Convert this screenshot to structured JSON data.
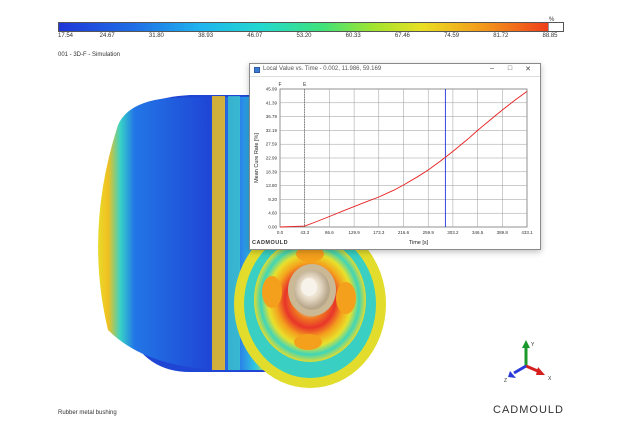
{
  "colorbar": {
    "unit": "%",
    "ticks": [
      "17.54",
      "24.67",
      "31.80",
      "38.93",
      "46.07",
      "53.20",
      "60.33",
      "67.46",
      "74.59",
      "81.72",
      "88.85"
    ]
  },
  "scene": {
    "label": "001 - 3D-F - Simulation"
  },
  "footer": {
    "label": "Rubber metal bushing"
  },
  "brand": {
    "name": "CADMOULD"
  },
  "triad": {
    "x": "X",
    "y": "Y",
    "z": "Z"
  },
  "window": {
    "title": "Local Value vs. Time - 0.002, 11.986, 59.169",
    "minimize_icon": "minimize-icon",
    "maximize_icon": "maximize-icon",
    "close_icon": "close-icon"
  },
  "chart_data": {
    "type": "line",
    "title": "",
    "xlabel": "Time [s]",
    "ylabel": "Mean Cure Rate [%]",
    "xlim": [
      0,
      433.1
    ],
    "ylim": [
      0,
      45.99
    ],
    "x_ticks": [
      "0.0",
      "43.3",
      "86.6",
      "129.9",
      "173.3",
      "216.6",
      "259.9",
      "303.2",
      "346.5",
      "389.8",
      "433.1"
    ],
    "y_ticks": [
      "0.00",
      "4.60",
      "9.20",
      "13.80",
      "18.39",
      "22.99",
      "27.59",
      "32.19",
      "36.79",
      "41.39",
      "45.99"
    ],
    "markers": [
      {
        "label": "F",
        "x": 0
      },
      {
        "label": "E",
        "x": 43.3
      }
    ],
    "cursor_x": 290,
    "grid": true,
    "watermark": "CADMOULD",
    "series": [
      {
        "color": "#e82020",
        "x": [
          0,
          43.3,
          60,
          86.6,
          110,
          129.9,
          150,
          173.3,
          200,
          216.6,
          240,
          259.9,
          280,
          303.2,
          330,
          346.5,
          370,
          389.8,
          410,
          433.1
        ],
        "y": [
          0,
          0.3,
          1.5,
          3.5,
          5.3,
          6.8,
          8.3,
          10.0,
          12.3,
          14.0,
          16.6,
          19.0,
          21.8,
          25.2,
          29.4,
          32.2,
          35.9,
          39.0,
          42.0,
          45.2
        ]
      }
    ]
  }
}
